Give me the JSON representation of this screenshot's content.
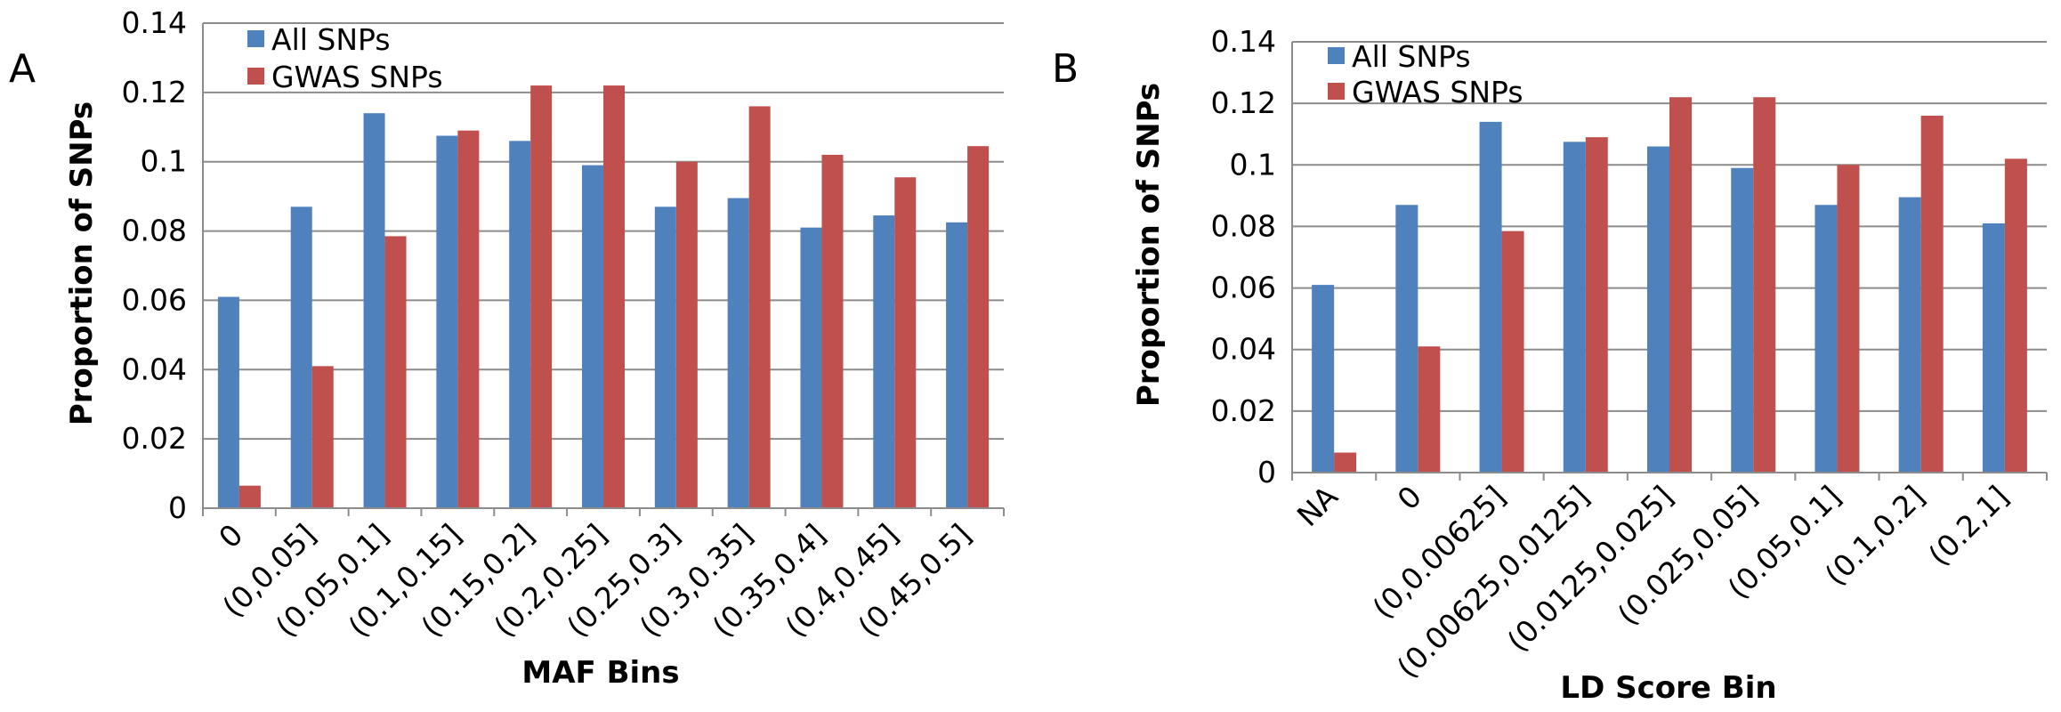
{
  "chart_data": [
    {
      "type": "bar",
      "panel_label": "A",
      "xlabel": "MAF Bins",
      "ylabel": "Proportion of SNPs",
      "ylim": [
        0,
        0.14
      ],
      "yticks": [
        "0",
        "0.02",
        "0.04",
        "0.06",
        "0.08",
        "0.1",
        "0.12",
        "0.14"
      ],
      "grid": true,
      "legend_position": "top-left",
      "categories": [
        "0",
        "(0,0.05]",
        "(0.05,0.1]",
        "(0.1,0.15]",
        "(0.15,0.2]",
        "(0.2,0.25]",
        "(0.25,0.3]",
        "(0.3,0.35]",
        "(0.35,0.4]",
        "(0.4,0.45]",
        "(0.45,0.5]"
      ],
      "series": [
        {
          "name": "All SNPs",
          "color": "#4F81BD",
          "values": [
            0.061,
            0.087,
            0.114,
            0.1075,
            0.106,
            0.099,
            0.087,
            0.0895,
            0.081,
            0.0845,
            0.0825
          ]
        },
        {
          "name": "GWAS SNPs",
          "color": "#C0504D",
          "values": [
            0.0065,
            0.041,
            0.0785,
            0.109,
            0.122,
            0.122,
            0.1,
            0.116,
            0.102,
            0.0955,
            0.1045
          ]
        }
      ]
    },
    {
      "type": "bar",
      "panel_label": "B",
      "xlabel": "LD Score Bin",
      "ylabel": "Proportion of SNPs",
      "ylim": [
        0,
        0.14
      ],
      "yticks": [
        "0",
        "0.02",
        "0.04",
        "0.06",
        "0.08",
        "0.1",
        "0.12",
        "0.14"
      ],
      "grid": true,
      "legend_position": "top-left",
      "categories": [
        "NA",
        "0",
        "(0,0.00625]",
        "(0.00625,0.0125]",
        "(0.0125,0.025]",
        "(0.025,0.05]",
        "(0.05,0.1]",
        "(0.1,0.2]",
        "(0.2,1]"
      ],
      "series": [
        {
          "name": "All SNPs",
          "color": "#4F81BD",
          "values": [
            0.061,
            0.087,
            0.114,
            0.1075,
            0.106,
            0.099,
            0.087,
            0.0895,
            0.081
          ]
        },
        {
          "name": "GWAS SNPs",
          "color": "#C0504D",
          "values": [
            0.0065,
            0.041,
            0.0785,
            0.109,
            0.122,
            0.122,
            0.1,
            0.116,
            0.102
          ]
        }
      ]
    }
  ]
}
